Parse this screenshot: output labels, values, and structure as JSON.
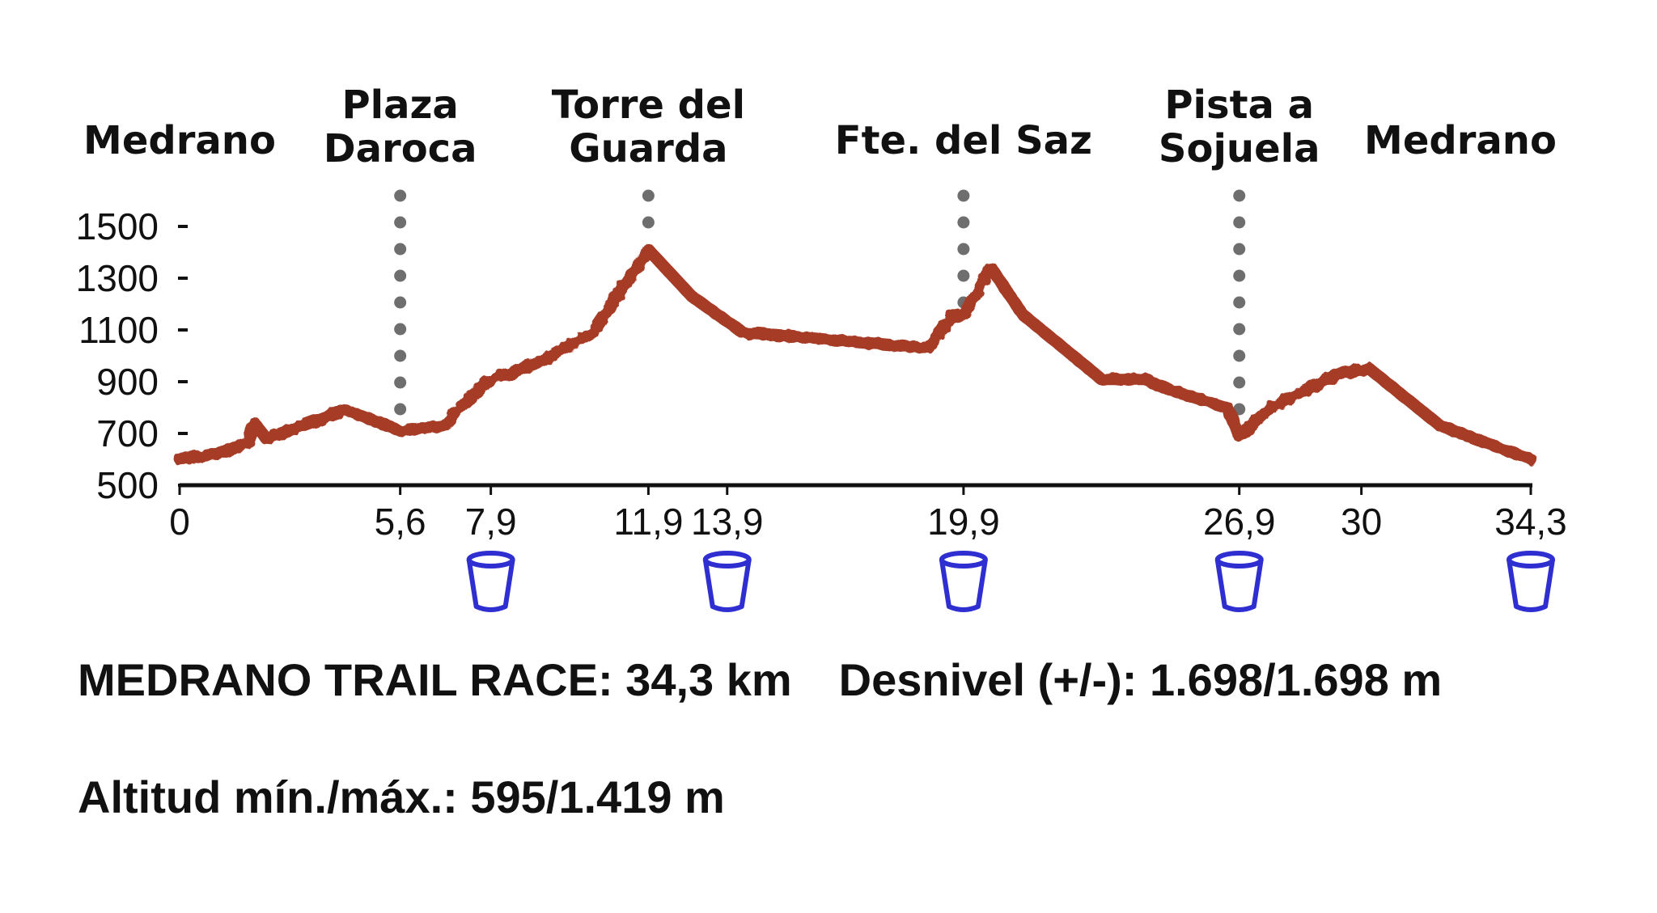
{
  "chart_data": {
    "type": "area",
    "title": "",
    "xlabel": "",
    "ylabel": "",
    "ylim": [
      500,
      1500
    ],
    "xlim": [
      0,
      34.3
    ],
    "y_ticks": [
      500,
      700,
      900,
      1100,
      1300,
      1500
    ],
    "x_ticks": [
      {
        "value": 0,
        "label": "0"
      },
      {
        "value": 5.6,
        "label": "5,6"
      },
      {
        "value": 7.9,
        "label": "7,9"
      },
      {
        "value": 11.9,
        "label": "11,9"
      },
      {
        "value": 13.9,
        "label": "13,9"
      },
      {
        "value": 19.9,
        "label": "19,9"
      },
      {
        "value": 26.9,
        "label": "26,9"
      },
      {
        "value": 30,
        "label": "30"
      },
      {
        "value": 34.3,
        "label": "34,3"
      }
    ],
    "series": [
      {
        "color": "#a63a26",
        "x": [
          0,
          0.9,
          1.7,
          1.9,
          2.2,
          4.2,
          4.6,
          5.6,
          6.7,
          7.2,
          7.8,
          9.2,
          10.5,
          11.9,
          13.0,
          14.3,
          19.0,
          19.6,
          19.9,
          20.6,
          21.4,
          22.2,
          23.4,
          24.5,
          25.1,
          26.6,
          26.9,
          27.6,
          29.4,
          30.2,
          32.0,
          34.3
        ],
        "y": [
          600,
          620,
          660,
          740,
          680,
          790,
          770,
          710,
          730,
          810,
          900,
          980,
          1090,
          1410,
          1230,
          1090,
          1030,
          1150,
          1160,
          1340,
          1160,
          1060,
          910,
          910,
          870,
          800,
          690,
          790,
          930,
          950,
          730,
          600
        ]
      }
    ],
    "waypoints": [
      {
        "x": 0,
        "lines": [
          "Medrano"
        ],
        "marker": false
      },
      {
        "x": 5.6,
        "lines": [
          "Plaza",
          "Daroca"
        ],
        "marker": true
      },
      {
        "x": 11.9,
        "lines": [
          "Torre del",
          "Guarda"
        ],
        "marker": true
      },
      {
        "x": 19.9,
        "lines": [
          "Fte. del Saz"
        ],
        "marker": true
      },
      {
        "x": 26.9,
        "lines": [
          "Pista a",
          "Sojuela"
        ],
        "marker": true
      },
      {
        "x": 34.3,
        "lines": [
          "Medrano"
        ],
        "marker": false
      }
    ],
    "aid_stations_km": [
      7.9,
      13.9,
      19.9,
      26.9,
      34.3
    ],
    "colors": {
      "profile": "#a63a26",
      "aid_icon": "#2f2fd1",
      "marker": "#6e6e6e",
      "axis": "#111111"
    }
  },
  "footer": {
    "race": "MEDRANO TRAIL RACE: 34,3 km",
    "elevation": "Desnivel (+/-): 1.698/1.698 m",
    "altitude": "Altitud mín./máx.: 595/1.419 m"
  }
}
